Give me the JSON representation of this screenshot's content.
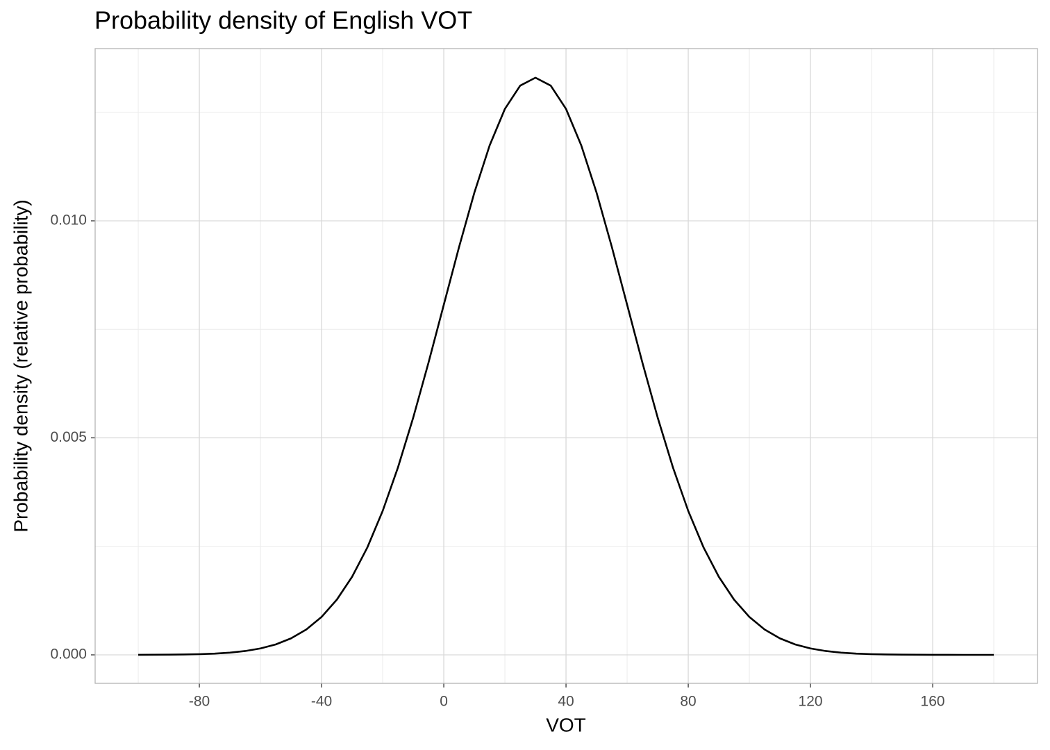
{
  "chart_data": {
    "type": "line",
    "title": "Probability density of English VOT",
    "xlabel": "VOT",
    "ylabel": "Probability density (relative probability)",
    "x": [
      -100,
      -95,
      -90,
      -85,
      -80,
      -75,
      -70,
      -65,
      -60,
      -55,
      -50,
      -45,
      -40,
      -35,
      -30,
      -25,
      -20,
      -15,
      -10,
      -5,
      0,
      5,
      10,
      15,
      20,
      25,
      30,
      35,
      40,
      45,
      50,
      55,
      60,
      65,
      70,
      75,
      80,
      85,
      90,
      95,
      100,
      105,
      110,
      115,
      120,
      125,
      130,
      135,
      140,
      145,
      150,
      155,
      160,
      165,
      170,
      175,
      180
    ],
    "series": [
      {
        "color": "#000000",
        "values": [
          1.1e-06,
          2.3e-06,
          4.5e-06,
          8.6e-06,
          1.6e-05,
          2.91e-05,
          5.14e-05,
          8.84e-05,
          0.0001477,
          0.0002403,
          0.00038,
          0.0005843,
          0.000874,
          0.0012716,
          0.0017997,
          0.002477,
          0.003316,
          0.004317,
          0.005467,
          0.006733,
          0.008066,
          0.009397,
          0.010648,
          0.011736,
          0.012579,
          0.013115,
          0.013298,
          0.013115,
          0.012579,
          0.011736,
          0.010648,
          0.009397,
          0.008066,
          0.006733,
          0.005467,
          0.004317,
          0.003316,
          0.002477,
          0.0017997,
          0.0012716,
          0.000874,
          0.0005843,
          0.00038,
          0.0002403,
          0.0001477,
          8.84e-05,
          5.14e-05,
          2.91e-05,
          1.6e-05,
          8.6e-06,
          4.5e-06,
          2.3e-06,
          1.1e-06,
          5e-07,
          2e-07,
          1e-07,
          1e-07
        ]
      }
    ],
    "xlim": [
      -114.1,
      194.3
    ],
    "xticks": [
      -80,
      -40,
      0,
      40,
      80,
      120,
      160
    ],
    "ylim": [
      -0.000656,
      0.013968
    ],
    "yticks": [
      {
        "value": 0,
        "label": "0.000"
      },
      {
        "value": 0.005,
        "label": "0.005"
      },
      {
        "value": 0.01,
        "label": "0.010"
      }
    ],
    "grid": true,
    "minor_grid": true
  }
}
